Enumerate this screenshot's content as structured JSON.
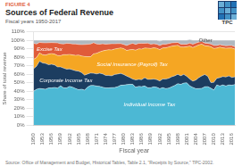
{
  "chart_data": {
    "type": "area",
    "stacked": true,
    "figure_label": "FIGURE 4",
    "title": "Sources of Federal Revenue",
    "subtitle": "Fiscal years 1950-2017",
    "logo_text": "TPC",
    "source": "Source: Office of Management and Budget, Historical Tables, Table 2.1, \"Receipts by Source,\" TPC-2002.",
    "xlabel": "Fiscal year",
    "ylabel": "Share of total revenue",
    "x": [
      1950,
      1951,
      1952,
      1953,
      1954,
      1955,
      1956,
      1957,
      1958,
      1959,
      1960,
      1961,
      1962,
      1963,
      1964,
      1965,
      1966,
      1967,
      1968,
      1969,
      1970,
      1971,
      1972,
      1973,
      1974,
      1975,
      1976,
      1977,
      1978,
      1979,
      1980,
      1981,
      1982,
      1983,
      1984,
      1985,
      1986,
      1987,
      1988,
      1989,
      1990,
      1991,
      1992,
      1993,
      1994,
      1995,
      1996,
      1997,
      1998,
      1999,
      2000,
      2001,
      2002,
      2003,
      2004,
      2005,
      2006,
      2007,
      2008,
      2009,
      2010,
      2011,
      2012,
      2013,
      2014,
      2015,
      2016,
      2017
    ],
    "series": [
      {
        "name": "Individual Income Tax",
        "color": "#4cb8d4",
        "values": [
          39.9,
          42.2,
          43.2,
          42.8,
          42.4,
          43.9,
          43.8,
          44.5,
          43.6,
          46.4,
          44.0,
          43.8,
          45.7,
          44.7,
          43.2,
          41.8,
          42.4,
          41.3,
          44.9,
          46.7,
          46.9,
          46.1,
          45.7,
          44.7,
          43.9,
          43.9,
          44.2,
          44.3,
          45.3,
          47.0,
          47.2,
          47.7,
          48.2,
          48.1,
          44.8,
          45.6,
          45.4,
          46.2,
          44.1,
          44.1,
          45.2,
          44.6,
          43.0,
          44.2,
          43.1,
          43.7,
          45.2,
          46.7,
          48.9,
          48.1,
          49.6,
          49.9,
          46.3,
          44.5,
          43.0,
          43.1,
          43.4,
          45.3,
          45.4,
          43.5,
          41.5,
          47.4,
          46.2,
          47.4,
          46.2,
          47.4,
          47.0,
          47.9
        ]
      },
      {
        "name": "Corporate Income Tax",
        "color": "#1c3d60",
        "values": [
          26.5,
          27.3,
          32.1,
          30.5,
          30.3,
          27.3,
          28.0,
          26.5,
          25.0,
          22.2,
          23.2,
          22.2,
          20.6,
          20.5,
          20.9,
          21.8,
          19.5,
          17.6,
          15.4,
          14.7,
          14.2,
          14.3,
          15.5,
          15.7,
          14.7,
          14.6,
          13.9,
          15.4,
          15.0,
          14.0,
          12.5,
          10.2,
          8.0,
          6.2,
          8.5,
          8.4,
          8.2,
          9.8,
          9.9,
          9.9,
          9.1,
          9.1,
          9.0,
          10.2,
          11.2,
          11.6,
          11.8,
          11.5,
          11.0,
          10.1,
          10.2,
          7.6,
          8.0,
          7.4,
          10.1,
          12.9,
          14.7,
          14.4,
          12.1,
          6.6,
          8.9,
          7.9,
          9.9,
          9.9,
          10.6,
          10.6,
          9.2,
          9.0
        ]
      },
      {
        "name": "Social Insurance (Payroll) Tax",
        "color": "#f5a623",
        "values": [
          11.0,
          10.1,
          9.8,
          9.8,
          9.8,
          12.5,
          12.6,
          12.7,
          13.5,
          13.3,
          15.9,
          17.0,
          17.1,
          17.5,
          18.1,
          19.0,
          19.6,
          22.0,
          20.4,
          19.3,
          23.0,
          24.3,
          25.0,
          27.0,
          29.6,
          30.3,
          30.5,
          30.0,
          30.0,
          30.0,
          30.5,
          30.1,
          32.6,
          34.8,
          35.1,
          35.9,
          36.1,
          34.8,
          36.7,
          36.3,
          36.8,
          36.9,
          37.0,
          36.6,
          36.8,
          36.8,
          36.1,
          35.4,
          34.2,
          33.9,
          32.2,
          34.9,
          38.8,
          39.6,
          39.8,
          38.5,
          37.4,
          33.9,
          35.7,
          42.3,
          40.0,
          35.5,
          35.8,
          33.8,
          33.8,
          32.8,
          34.7,
          32.7
        ]
      },
      {
        "name": "Excise Tax",
        "color": "#e05c3a",
        "values": [
          19.1,
          16.0,
          12.5,
          14.0,
          14.5,
          13.4,
          12.9,
          13.4,
          14.8,
          14.1,
          12.6,
          13.4,
          12.9,
          13.0,
          13.4,
          12.5,
          13.4,
          14.1,
          14.6,
          15.0,
          13.0,
          11.0,
          9.2,
          8.5,
          7.3,
          6.9,
          7.4,
          6.2,
          5.8,
          5.1,
          5.0,
          5.9,
          6.6,
          7.4,
          6.8,
          6.5,
          6.7,
          5.7,
          5.9,
          5.2,
          4.8,
          4.8,
          4.9,
          4.5,
          4.3,
          4.1,
          3.9,
          3.7,
          3.4,
          3.4,
          3.5,
          3.1,
          3.5,
          3.8,
          3.8,
          3.3,
          3.1,
          3.0,
          3.1,
          3.2,
          3.6,
          3.1,
          3.0,
          3.0,
          3.0,
          3.0,
          2.9,
          2.8
        ]
      },
      {
        "name": "Other",
        "color": "#b0b8bf",
        "values": [
          3.5,
          4.4,
          2.4,
          2.9,
          3.0,
          2.9,
          2.7,
          2.9,
          3.1,
          4.0,
          4.3,
          3.6,
          3.7,
          4.3,
          4.4,
          4.9,
          5.1,
          5.0,
          4.7,
          4.3,
          2.9,
          4.3,
          4.6,
          4.1,
          4.5,
          4.3,
          4.0,
          4.1,
          3.9,
          3.9,
          4.8,
          6.1,
          4.6,
          3.5,
          4.8,
          3.6,
          3.6,
          3.5,
          3.4,
          4.5,
          4.1,
          4.6,
          5.1,
          4.5,
          4.6,
          3.8,
          3.0,
          2.7,
          2.5,
          4.5,
          4.5,
          4.5,
          4.2,
          4.7,
          3.3,
          2.2,
          1.4,
          3.4,
          3.7,
          4.4,
          6.0,
          6.1,
          5.1,
          5.9,
          6.4,
          6.2,
          6.2,
          7.6
        ]
      }
    ],
    "annotations": [
      {
        "text": "Individual Income Tax",
        "x": 1980,
        "y": 22,
        "color": "#ffffff"
      },
      {
        "text": "Corporate Income Tax",
        "x": 1952,
        "y": 51,
        "color": "#ffffff"
      },
      {
        "text": "Social Insurance (Payroll) Tax",
        "x": 1971,
        "y": 70,
        "color": "#ffffff"
      },
      {
        "text": "Excise Tax",
        "x": 1951,
        "y": 87,
        "color": "#ffffff"
      },
      {
        "text": "Other",
        "x": 2005,
        "y": 97.5,
        "color": "#444444"
      }
    ],
    "xlim": [
      1950,
      2017
    ],
    "xticks": [
      1950,
      1953,
      1956,
      1959,
      1962,
      1965,
      1968,
      1971,
      1974,
      1977,
      1980,
      1983,
      1986,
      1989,
      1992,
      1995,
      1998,
      2001,
      2004,
      2007,
      2010,
      2013,
      2016
    ],
    "ylim": [
      0,
      110
    ],
    "yticks": [
      {
        "value": 0,
        "label": "0%"
      },
      {
        "value": 10,
        "label": "10%"
      },
      {
        "value": 20,
        "label": "20%"
      },
      {
        "value": 30,
        "label": "30%"
      },
      {
        "value": 40,
        "label": "40%"
      },
      {
        "value": 50,
        "label": "50%"
      },
      {
        "value": 60,
        "label": "60%"
      },
      {
        "value": 70,
        "label": "70%"
      },
      {
        "value": 80,
        "label": "80%"
      },
      {
        "value": 90,
        "label": "90%"
      },
      {
        "value": 100,
        "label": "100%"
      },
      {
        "value": 110,
        "label": "110%"
      }
    ],
    "grid": true
  }
}
